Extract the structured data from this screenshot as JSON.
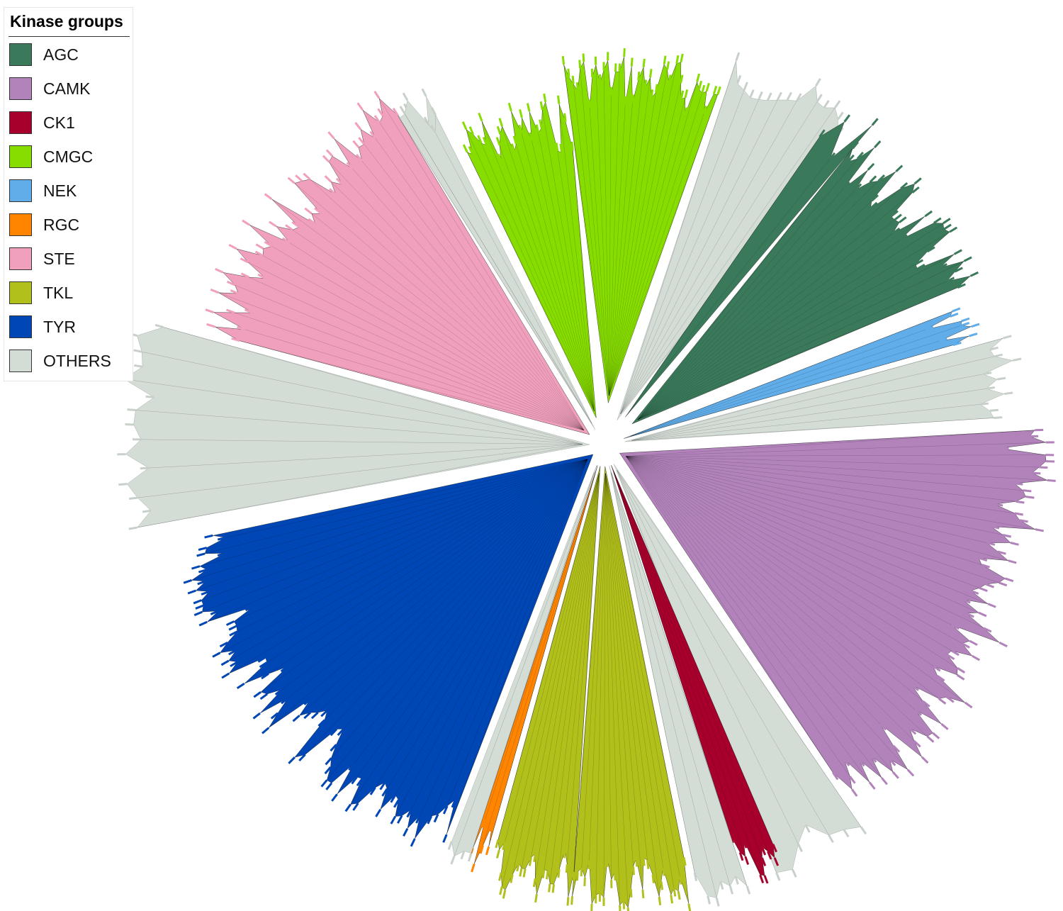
{
  "legend": {
    "title": "Kinase groups",
    "items": [
      {
        "label": "AGC",
        "color": "#3a7a5a"
      },
      {
        "label": "CAMK",
        "color": "#b283bb"
      },
      {
        "label": "CK1",
        "color": "#a8002c"
      },
      {
        "label": "CMGC",
        "color": "#88dd00"
      },
      {
        "label": "NEK",
        "color": "#60ade9"
      },
      {
        "label": "RGC",
        "color": "#ff8400"
      },
      {
        "label": "STE",
        "color": "#f09fbc"
      },
      {
        "label": "TKL",
        "color": "#b2c01b"
      },
      {
        "label": "TYR",
        "color": "#0046b5"
      },
      {
        "label": "OTHERS",
        "color": "#d4dcd6"
      }
    ]
  },
  "tree": {
    "type": "circular-dendrogram",
    "clades": [
      {
        "group": "CMGC",
        "color": "#88dd00"
      },
      {
        "group": "OTHERS",
        "color": "#d4dcd6"
      },
      {
        "group": "AGC",
        "color": "#3a7a5a"
      },
      {
        "group": "NEK",
        "color": "#60ade9"
      },
      {
        "group": "CAMK",
        "color": "#b283bb"
      },
      {
        "group": "CK1",
        "color": "#a8002c"
      },
      {
        "group": "TKL",
        "color": "#b2c01b"
      },
      {
        "group": "RGC",
        "color": "#ff8400"
      },
      {
        "group": "TYR",
        "color": "#0046b5"
      },
      {
        "group": "STE",
        "color": "#f09fbc"
      }
    ]
  }
}
